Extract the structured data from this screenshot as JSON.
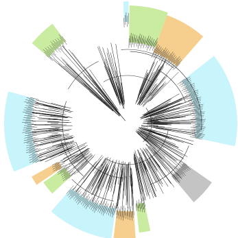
{
  "figure": {
    "type": "circular-phylogenetic-tree",
    "background_color": "#ffffff",
    "branch_color": "#1a1a1a",
    "root_arc_color": "#333333"
  },
  "clade_colors": {
    "cyan": "#c8f4fb",
    "green": "#c9eca0",
    "orange": "#f6cf8f",
    "gray": "#c4c4c4"
  },
  "highlighted_clades": [
    {
      "name": "clade-cyan-top-sliver",
      "color": "cyan"
    },
    {
      "name": "clade-green-top",
      "color": "green"
    },
    {
      "name": "clade-orange-top",
      "color": "orange"
    },
    {
      "name": "clade-cyan-right",
      "color": "cyan"
    },
    {
      "name": "clade-gray-lower-right",
      "color": "gray"
    },
    {
      "name": "clade-green-bottom",
      "color": "green"
    },
    {
      "name": "clade-orange-bottom",
      "color": "orange"
    },
    {
      "name": "clade-cyan-bottom",
      "color": "cyan"
    },
    {
      "name": "clade-green-lower-left",
      "color": "green"
    },
    {
      "name": "clade-orange-lower-left",
      "color": "orange"
    },
    {
      "name": "clade-cyan-left",
      "color": "cyan"
    },
    {
      "name": "clade-green-upper-left",
      "color": "green"
    }
  ]
}
